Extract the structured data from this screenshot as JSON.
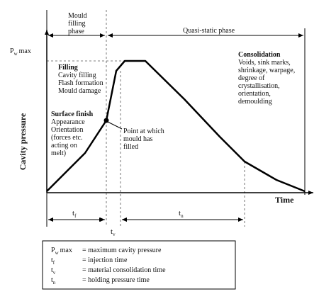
{
  "phases": {
    "filling": [
      "Mould",
      "filling",
      "phase"
    ],
    "quasi_static": "Quasi-static phase"
  },
  "pw_max": {
    "symbol": "P",
    "subscript": "w",
    "suffix": "max"
  },
  "filling_block": [
    "Filling",
    "Cavity filling",
    "Flash formation",
    "Mould damage"
  ],
  "surface_block": [
    "Surface finish",
    "Appearance",
    "Orientation",
    "(forces etc.",
    "acting on",
    "melt)"
  ],
  "point_note": [
    "Point at which",
    "mould has",
    "filled"
  ],
  "consolidation_block": [
    "Consolidation",
    "Voids, sink marks,",
    "shrinkage, warpage,",
    "degree of",
    "crystallisation,",
    "orientation,",
    "demoulding"
  ],
  "axes": {
    "y_label": "Cavity pressure",
    "x_label": "Time"
  },
  "intervals": {
    "tf": {
      "symbol": "t",
      "subscript": "f"
    },
    "tv": {
      "symbol": "t",
      "subscript": "v"
    },
    "tn": {
      "symbol": "t",
      "subscript": "n"
    }
  },
  "legend": [
    {
      "symbol": "P",
      "subscript": "w",
      "suffix": "max",
      "definition": "= maximum cavity pressure"
    },
    {
      "symbol": "t",
      "subscript": "f",
      "definition": "= injection time"
    },
    {
      "symbol": "t",
      "subscript": "v",
      "definition": "= material consolidation time"
    },
    {
      "symbol": "t",
      "subscript": "n",
      "definition": "= holding pressure time"
    }
  ]
}
